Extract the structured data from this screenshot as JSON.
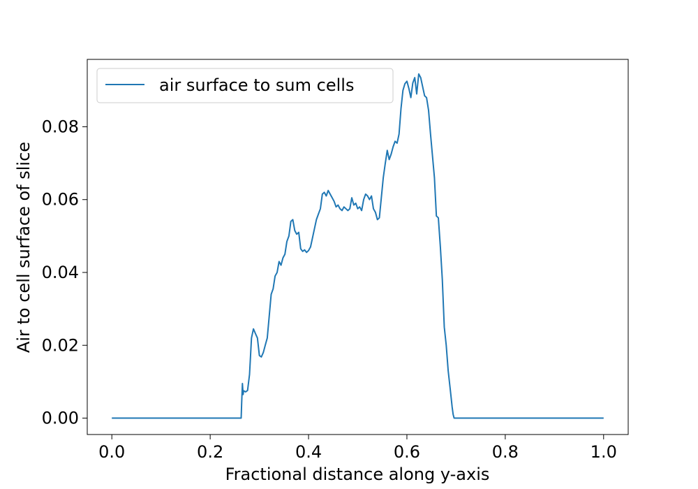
{
  "chart_data": {
    "type": "line",
    "title": "",
    "xlabel": "Fractional distance along y-axis",
    "ylabel": "Air to cell surface of slice",
    "xlim": [
      -0.05,
      1.05
    ],
    "ylim": [
      -0.0045,
      0.0985
    ],
    "x_ticks": [
      0.0,
      0.2,
      0.4,
      0.6,
      0.8,
      1.0
    ],
    "x_tick_labels": [
      "0.0",
      "0.2",
      "0.4",
      "0.6",
      "0.8",
      "1.0"
    ],
    "y_ticks": [
      0.0,
      0.02,
      0.04,
      0.06,
      0.08
    ],
    "y_tick_labels": [
      "0.00",
      "0.02",
      "0.04",
      "0.06",
      "0.08"
    ],
    "grid": false,
    "legend_position": "top-left",
    "series": [
      {
        "name": "air surface to sum cells",
        "color": "#1f77b4",
        "x": [
          0.0,
          0.1,
          0.2,
          0.263,
          0.264,
          0.2655,
          0.267,
          0.268,
          0.272,
          0.276,
          0.28,
          0.284,
          0.288,
          0.292,
          0.296,
          0.3,
          0.304,
          0.308,
          0.312,
          0.316,
          0.32,
          0.324,
          0.328,
          0.332,
          0.336,
          0.34,
          0.344,
          0.348,
          0.352,
          0.356,
          0.36,
          0.364,
          0.368,
          0.372,
          0.376,
          0.38,
          0.384,
          0.388,
          0.392,
          0.396,
          0.4,
          0.404,
          0.408,
          0.412,
          0.416,
          0.42,
          0.424,
          0.428,
          0.432,
          0.436,
          0.44,
          0.444,
          0.448,
          0.452,
          0.456,
          0.46,
          0.464,
          0.468,
          0.472,
          0.476,
          0.48,
          0.484,
          0.488,
          0.492,
          0.496,
          0.5,
          0.504,
          0.508,
          0.512,
          0.516,
          0.52,
          0.524,
          0.528,
          0.532,
          0.536,
          0.54,
          0.544,
          0.548,
          0.552,
          0.556,
          0.56,
          0.564,
          0.568,
          0.572,
          0.576,
          0.58,
          0.584,
          0.588,
          0.592,
          0.596,
          0.6,
          0.604,
          0.608,
          0.612,
          0.616,
          0.62,
          0.624,
          0.628,
          0.632,
          0.636,
          0.64,
          0.644,
          0.648,
          0.652,
          0.656,
          0.66,
          0.664,
          0.668,
          0.672,
          0.676,
          0.68,
          0.684,
          0.688,
          0.692,
          0.694,
          0.696,
          0.7,
          0.8,
          0.9,
          1.0
        ],
        "values": [
          0.0,
          0.0,
          0.0,
          0.0,
          0.004,
          0.0095,
          0.0065,
          0.0075,
          0.0072,
          0.0076,
          0.012,
          0.022,
          0.0245,
          0.0232,
          0.022,
          0.0172,
          0.0168,
          0.018,
          0.02,
          0.022,
          0.028,
          0.034,
          0.0355,
          0.039,
          0.04,
          0.043,
          0.042,
          0.044,
          0.045,
          0.0485,
          0.05,
          0.054,
          0.0545,
          0.0515,
          0.0505,
          0.051,
          0.0465,
          0.0458,
          0.0462,
          0.0455,
          0.046,
          0.047,
          0.0495,
          0.052,
          0.0545,
          0.056,
          0.0575,
          0.0615,
          0.062,
          0.061,
          0.0625,
          0.0615,
          0.0605,
          0.0595,
          0.058,
          0.0585,
          0.0575,
          0.057,
          0.058,
          0.0575,
          0.057,
          0.0575,
          0.0605,
          0.0585,
          0.059,
          0.0575,
          0.058,
          0.057,
          0.06,
          0.0615,
          0.061,
          0.06,
          0.061,
          0.0575,
          0.0565,
          0.0545,
          0.055,
          0.0605,
          0.066,
          0.07,
          0.0735,
          0.071,
          0.0725,
          0.0745,
          0.076,
          0.0755,
          0.078,
          0.085,
          0.09,
          0.0918,
          0.0925,
          0.0905,
          0.088,
          0.092,
          0.0935,
          0.089,
          0.0945,
          0.0935,
          0.091,
          0.0885,
          0.088,
          0.0845,
          0.078,
          0.072,
          0.066,
          0.0555,
          0.055,
          0.047,
          0.038,
          0.025,
          0.02,
          0.013,
          0.008,
          0.003,
          0.001,
          0.0,
          0.0,
          0.0,
          0.0,
          0.0
        ]
      }
    ]
  }
}
